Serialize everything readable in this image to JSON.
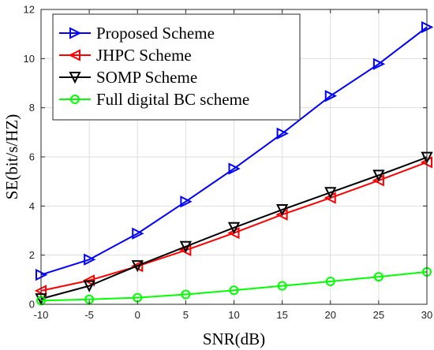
{
  "chart_data": {
    "type": "line",
    "xlabel": "SNR(dB)",
    "ylabel": "SE(bit/s/HZ)",
    "xlim": [
      -10,
      30
    ],
    "ylim": [
      0,
      12
    ],
    "xticks": [
      -10,
      -5,
      0,
      5,
      10,
      15,
      20,
      25,
      30
    ],
    "yticks": [
      0,
      2,
      4,
      6,
      8,
      10,
      12
    ],
    "grid": true,
    "legend_position": "top-left",
    "x": [
      -10,
      -5,
      0,
      5,
      10,
      15,
      20,
      25,
      30
    ],
    "series": [
      {
        "name": "Proposed Scheme",
        "color": "#0000ff",
        "marker": "triangle-right",
        "values": [
          1.2,
          1.82,
          2.88,
          4.18,
          5.52,
          6.95,
          8.48,
          9.78,
          11.28
        ]
      },
      {
        "name": "JHPC Scheme",
        "color": "#ff0000",
        "marker": "triangle-left",
        "values": [
          0.55,
          0.97,
          1.55,
          2.2,
          2.9,
          3.65,
          4.33,
          5.04,
          5.78
        ]
      },
      {
        "name": "SOMP Scheme",
        "color": "#000000",
        "marker": "triangle-down",
        "values": [
          0.22,
          0.75,
          1.57,
          2.35,
          3.12,
          3.85,
          4.55,
          5.25,
          5.98
        ]
      },
      {
        "name": "Full digital BC scheme",
        "color": "#00ff00",
        "marker": "circle",
        "values": [
          0.15,
          0.2,
          0.27,
          0.4,
          0.57,
          0.75,
          0.93,
          1.12,
          1.32
        ]
      }
    ]
  }
}
